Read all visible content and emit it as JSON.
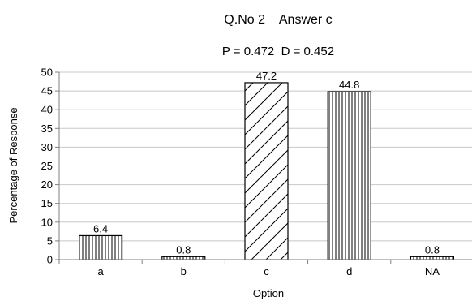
{
  "chart_data": {
    "type": "bar",
    "title": "Q.No 2    Answer c",
    "subtitle": "P = 0.472  D = 0.452",
    "xlabel": "Option",
    "ylabel": "Percentage of Response",
    "categories": [
      "a",
      "b",
      "c",
      "d",
      "NA"
    ],
    "values": [
      6.4,
      0.8,
      47.2,
      44.8,
      0.8
    ],
    "value_labels": [
      "6.4",
      "0.8",
      "47.2",
      "44.8",
      "0.8"
    ],
    "bar_patterns": [
      "vertical-lines",
      "vertical-lines",
      "diagonal-lines",
      "vertical-lines",
      "vertical-lines"
    ],
    "ylim": [
      0,
      50
    ],
    "yticks": [
      "0",
      "5",
      "10",
      "15",
      "20",
      "25",
      "30",
      "35",
      "40",
      "45",
      "50"
    ],
    "grid": true,
    "legend": "none",
    "colors": {
      "bar_stroke": "#000000",
      "grid": "#c8c8c8",
      "axis": "#7f7f7f",
      "background": "#ffffff"
    }
  }
}
